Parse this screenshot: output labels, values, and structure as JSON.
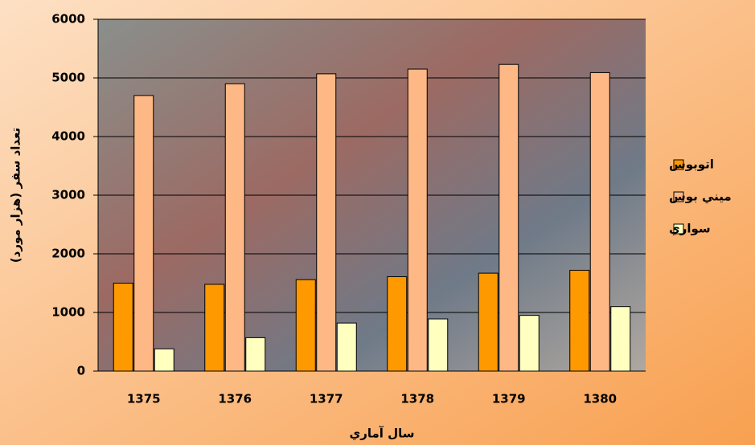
{
  "chart_data": {
    "type": "bar",
    "categories": [
      "1375",
      "1376",
      "1377",
      "1378",
      "1379",
      "1380"
    ],
    "series": [
      {
        "name": "اتوبوس",
        "color": "#ff9900",
        "values": [
          1500,
          1480,
          1560,
          1610,
          1670,
          1720
        ]
      },
      {
        "name": "ميني بوس",
        "color": "#fdb885",
        "values": [
          4700,
          4900,
          5070,
          5150,
          5230,
          5090
        ]
      },
      {
        "name": "سواري",
        "color": "#ffffc0",
        "values": [
          380,
          570,
          820,
          890,
          950,
          1100
        ]
      }
    ],
    "ylim": [
      0,
      6000
    ],
    "yticks": [
      0,
      1000,
      2000,
      3000,
      4000,
      5000,
      6000
    ],
    "grid": true,
    "x_label": "سال آماري",
    "y_label": "تعداد سفر (هزار مورد)"
  }
}
